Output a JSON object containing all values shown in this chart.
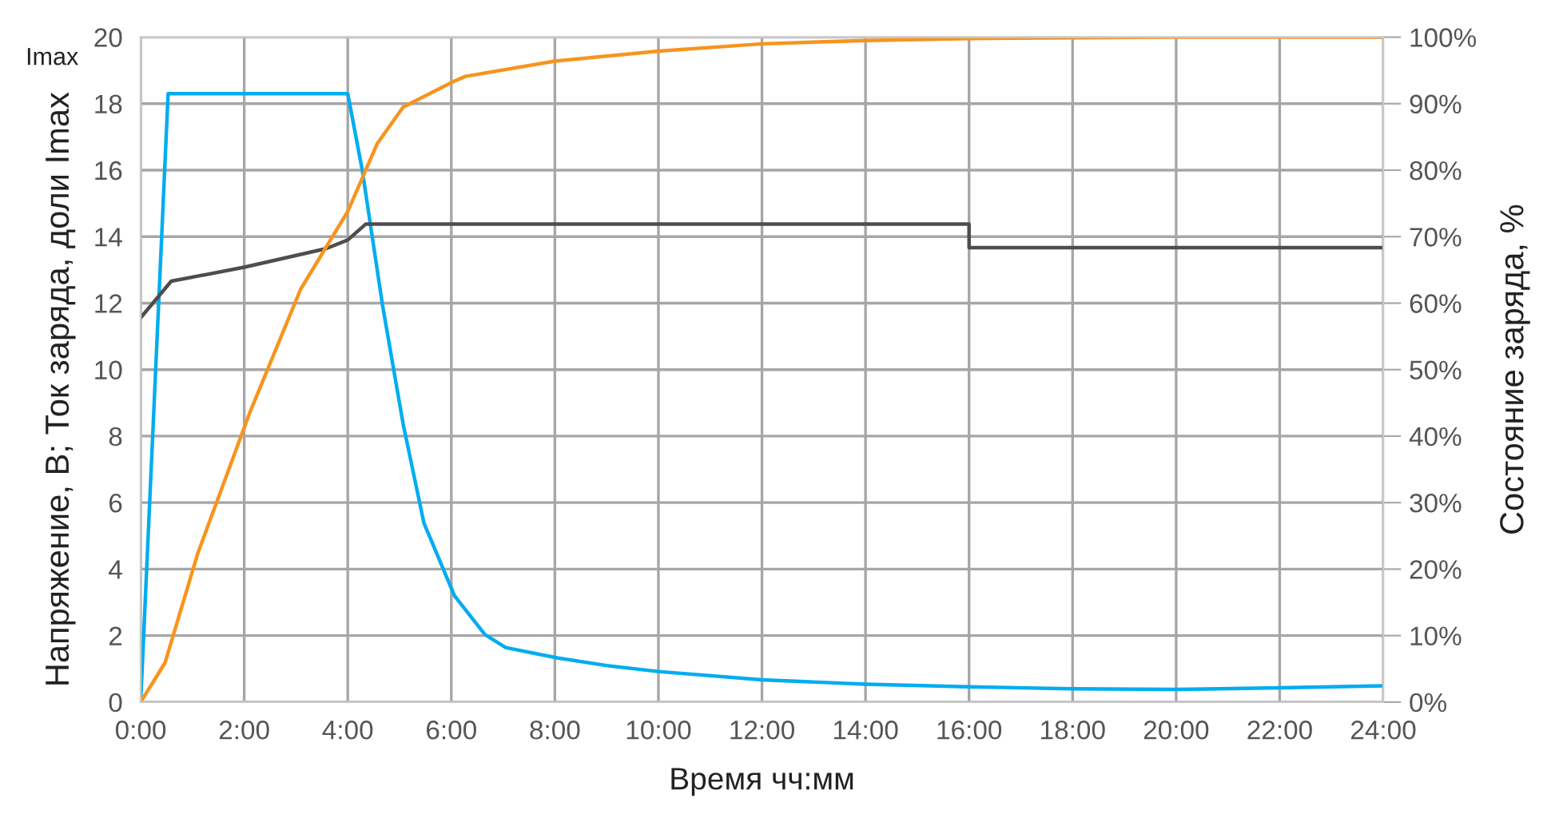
{
  "chart_data": {
    "type": "line",
    "xlabel": "Время чч:мм",
    "ylabel": "Напряжение, В; Ток заряда, доли Imax",
    "y2label": "Состояние заряда, %",
    "annotations": [
      "Imax"
    ],
    "xlim": [
      0,
      24
    ],
    "xticks": [
      {
        "value": 0,
        "label": "0:00"
      },
      {
        "value": 2,
        "label": "2:00"
      },
      {
        "value": 4,
        "label": "4:00"
      },
      {
        "value": 6,
        "label": "6:00"
      },
      {
        "value": 8,
        "label": "8:00"
      },
      {
        "value": 10,
        "label": "10:00"
      },
      {
        "value": 12,
        "label": "12:00"
      },
      {
        "value": 14,
        "label": "14:00"
      },
      {
        "value": 16,
        "label": "16:00"
      },
      {
        "value": 18,
        "label": "18:00"
      },
      {
        "value": 20,
        "label": "20:00"
      },
      {
        "value": 22,
        "label": "22:00"
      },
      {
        "value": 24,
        "label": "24:00"
      }
    ],
    "ylim": [
      0,
      20
    ],
    "yticks": [
      0,
      2,
      4,
      6,
      8,
      10,
      12,
      14,
      16,
      18,
      20
    ],
    "y2lim": [
      0,
      100
    ],
    "y2ticks": [
      {
        "value": 0,
        "label": "0%"
      },
      {
        "value": 10,
        "label": "10%"
      },
      {
        "value": 20,
        "label": "20%"
      },
      {
        "value": 30,
        "label": "30%"
      },
      {
        "value": 40,
        "label": "40%"
      },
      {
        "value": 50,
        "label": "50%"
      },
      {
        "value": 60,
        "label": "60%"
      },
      {
        "value": 70,
        "label": "70%"
      },
      {
        "value": 80,
        "label": "80%"
      },
      {
        "value": 90,
        "label": "90%"
      },
      {
        "value": 100,
        "label": "100%"
      }
    ],
    "grid": true,
    "marker": "none",
    "line_style": "solid",
    "series": [
      {
        "color": "#00adef",
        "x": [
          0,
          0.53,
          4.0,
          4.28,
          4.67,
          5.07,
          5.47,
          6.06,
          6.65,
          7.05,
          8.04,
          9.0,
          10.0,
          12.0,
          14.0,
          16.0,
          18.0,
          20.0,
          22.0,
          24.0
        ],
        "values": [
          0,
          18.3,
          18.3,
          16.0,
          11.95,
          8.36,
          5.39,
          3.2,
          2.03,
          1.64,
          1.33,
          1.1,
          0.92,
          0.67,
          0.54,
          0.46,
          0.4,
          0.38,
          0.43,
          0.49
        ]
      },
      {
        "color": "#f7941d",
        "axis": "y2",
        "x": [
          0,
          0.47,
          1.1,
          2.1,
          3.09,
          4.0,
          4.57,
          5.07,
          6.06,
          6.27,
          8.0,
          10.0,
          12.0,
          14.0,
          16.0,
          20.0,
          24.0
        ],
        "values": [
          0,
          5.9,
          22.3,
          43.4,
          62.1,
          73.8,
          84,
          89.5,
          93.4,
          94.1,
          96.4,
          97.9,
          99,
          99.5,
          99.8,
          100,
          100
        ]
      },
      {
        "color": "#4d4d4d",
        "x": [
          0,
          0.59,
          2.0,
          3.58,
          4.0,
          4.35,
          16.0,
          16.0,
          24.0
        ],
        "values": [
          11.56,
          12.66,
          13.08,
          13.64,
          13.9,
          14.38,
          14.38,
          13.67,
          13.67
        ]
      }
    ]
  }
}
